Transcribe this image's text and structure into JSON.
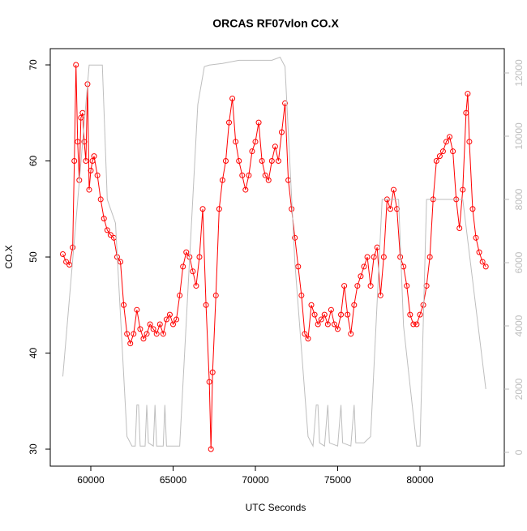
{
  "chart_data": {
    "type": "line",
    "title": "ORCAS RF07vlon CO.X",
    "x_label": "UTC Seconds",
    "y_label": "CO.X",
    "xlim": [
      57537,
      85123
    ],
    "xticks": [
      60000,
      65000,
      70000,
      75000,
      80000
    ],
    "ylim": [
      28.23,
      71.69
    ],
    "yticks": [
      30,
      40,
      50,
      60,
      70
    ],
    "y2lim": [
      -436,
      12769
    ],
    "y2ticks": [
      0,
      2000,
      4000,
      6000,
      8000,
      10000,
      12000
    ],
    "series": [
      {
        "color": "#ff0000",
        "markers": true,
        "x": [
          58300,
          58500,
          58700,
          58900,
          59000,
          59100,
          59200,
          59300,
          59400,
          59500,
          59600,
          59700,
          59800,
          59900,
          60000,
          60100,
          60200,
          60400,
          60600,
          60800,
          61000,
          61200,
          61400,
          61600,
          61800,
          62000,
          62200,
          62400,
          62600,
          62800,
          63000,
          63200,
          63400,
          63600,
          63800,
          64000,
          64200,
          64400,
          64600,
          64800,
          65000,
          65200,
          65400,
          65600,
          65800,
          66000,
          66200,
          66400,
          66600,
          66800,
          67000,
          67200,
          67300,
          67400,
          67600,
          67800,
          68000,
          68200,
          68400,
          68600,
          68800,
          69000,
          69200,
          69400,
          69600,
          69800,
          70000,
          70200,
          70400,
          70600,
          70800,
          71000,
          71200,
          71400,
          71600,
          71800,
          72000,
          72200,
          72400,
          72600,
          72800,
          73000,
          73200,
          73400,
          73600,
          73800,
          74000,
          74200,
          74400,
          74600,
          74800,
          75000,
          75200,
          75400,
          75600,
          75800,
          76000,
          76200,
          76400,
          76600,
          76800,
          77000,
          77200,
          77400,
          77600,
          77800,
          78000,
          78200,
          78400,
          78600,
          78800,
          79000,
          79200,
          79400,
          79600,
          79800,
          80000,
          80200,
          80400,
          80600,
          80800,
          81000,
          81200,
          81400,
          81600,
          81800,
          82000,
          82200,
          82400,
          82600,
          82800,
          82900,
          83000,
          83200,
          83400,
          83600,
          83800,
          84000
        ],
        "values": [
          50.3,
          49.5,
          49.2,
          51,
          60,
          70,
          62,
          58,
          64.5,
          65,
          62,
          60,
          68,
          57,
          59,
          60,
          60.5,
          58.5,
          56,
          54,
          52.8,
          52.3,
          52,
          50,
          49.5,
          45,
          42,
          41,
          42,
          44.5,
          42.5,
          41.5,
          42,
          43,
          42.5,
          42,
          43,
          42,
          43.5,
          44,
          43,
          43.5,
          46,
          49,
          50.5,
          50,
          48.5,
          47,
          50,
          55,
          45,
          37,
          30,
          38,
          46,
          55,
          58,
          60,
          64,
          66.5,
          62,
          60,
          58.5,
          57,
          58.5,
          61,
          62,
          64,
          60,
          58.5,
          58,
          60,
          61.5,
          60,
          63,
          66,
          58,
          55,
          52,
          49,
          46,
          42,
          41.5,
          45,
          44,
          43,
          43.5,
          44,
          43,
          44.5,
          43,
          42.5,
          44,
          47,
          44,
          42,
          45,
          47,
          48,
          49,
          50,
          47,
          50,
          51,
          46,
          50,
          56,
          55,
          57,
          55,
          50,
          49,
          47,
          44,
          43,
          43,
          44,
          45,
          47,
          50,
          56,
          60,
          60.5,
          61,
          62,
          62.5,
          61,
          56,
          53,
          57,
          65,
          67,
          62,
          55,
          52,
          50.5,
          49.5,
          49
        ]
      },
      {
        "color": "#bebebe",
        "axis": "y2",
        "x": [
          58300,
          59900,
          60700,
          61000,
          61500,
          62200,
          62500,
          62700,
          62800,
          62900,
          63000,
          63300,
          63400,
          63500,
          63800,
          63900,
          64000,
          64400,
          64500,
          64600,
          65400,
          66500,
          66900,
          67200,
          68000,
          69000,
          70000,
          71000,
          71500,
          71800,
          72400,
          73200,
          73500,
          73700,
          73800,
          73900,
          74200,
          74400,
          74500,
          75000,
          75200,
          75300,
          75800,
          76000,
          76100,
          76600,
          77000,
          77700,
          78700,
          79000,
          79800,
          80000,
          80400,
          81000,
          82300,
          82600,
          84000
        ],
        "values": [
          2400,
          12250,
          12250,
          8000,
          7250,
          500,
          200,
          200,
          1500,
          1500,
          200,
          200,
          1500,
          300,
          200,
          1500,
          200,
          200,
          1500,
          200,
          200,
          11000,
          12200,
          12250,
          12300,
          12400,
          12400,
          12400,
          12500,
          12200,
          6000,
          500,
          200,
          1500,
          1500,
          300,
          200,
          1500,
          300,
          200,
          1500,
          300,
          200,
          1500,
          300,
          300,
          500,
          8000,
          8000,
          4000,
          200,
          200,
          8000,
          8000,
          8000,
          8000,
          2000
        ]
      }
    ]
  }
}
